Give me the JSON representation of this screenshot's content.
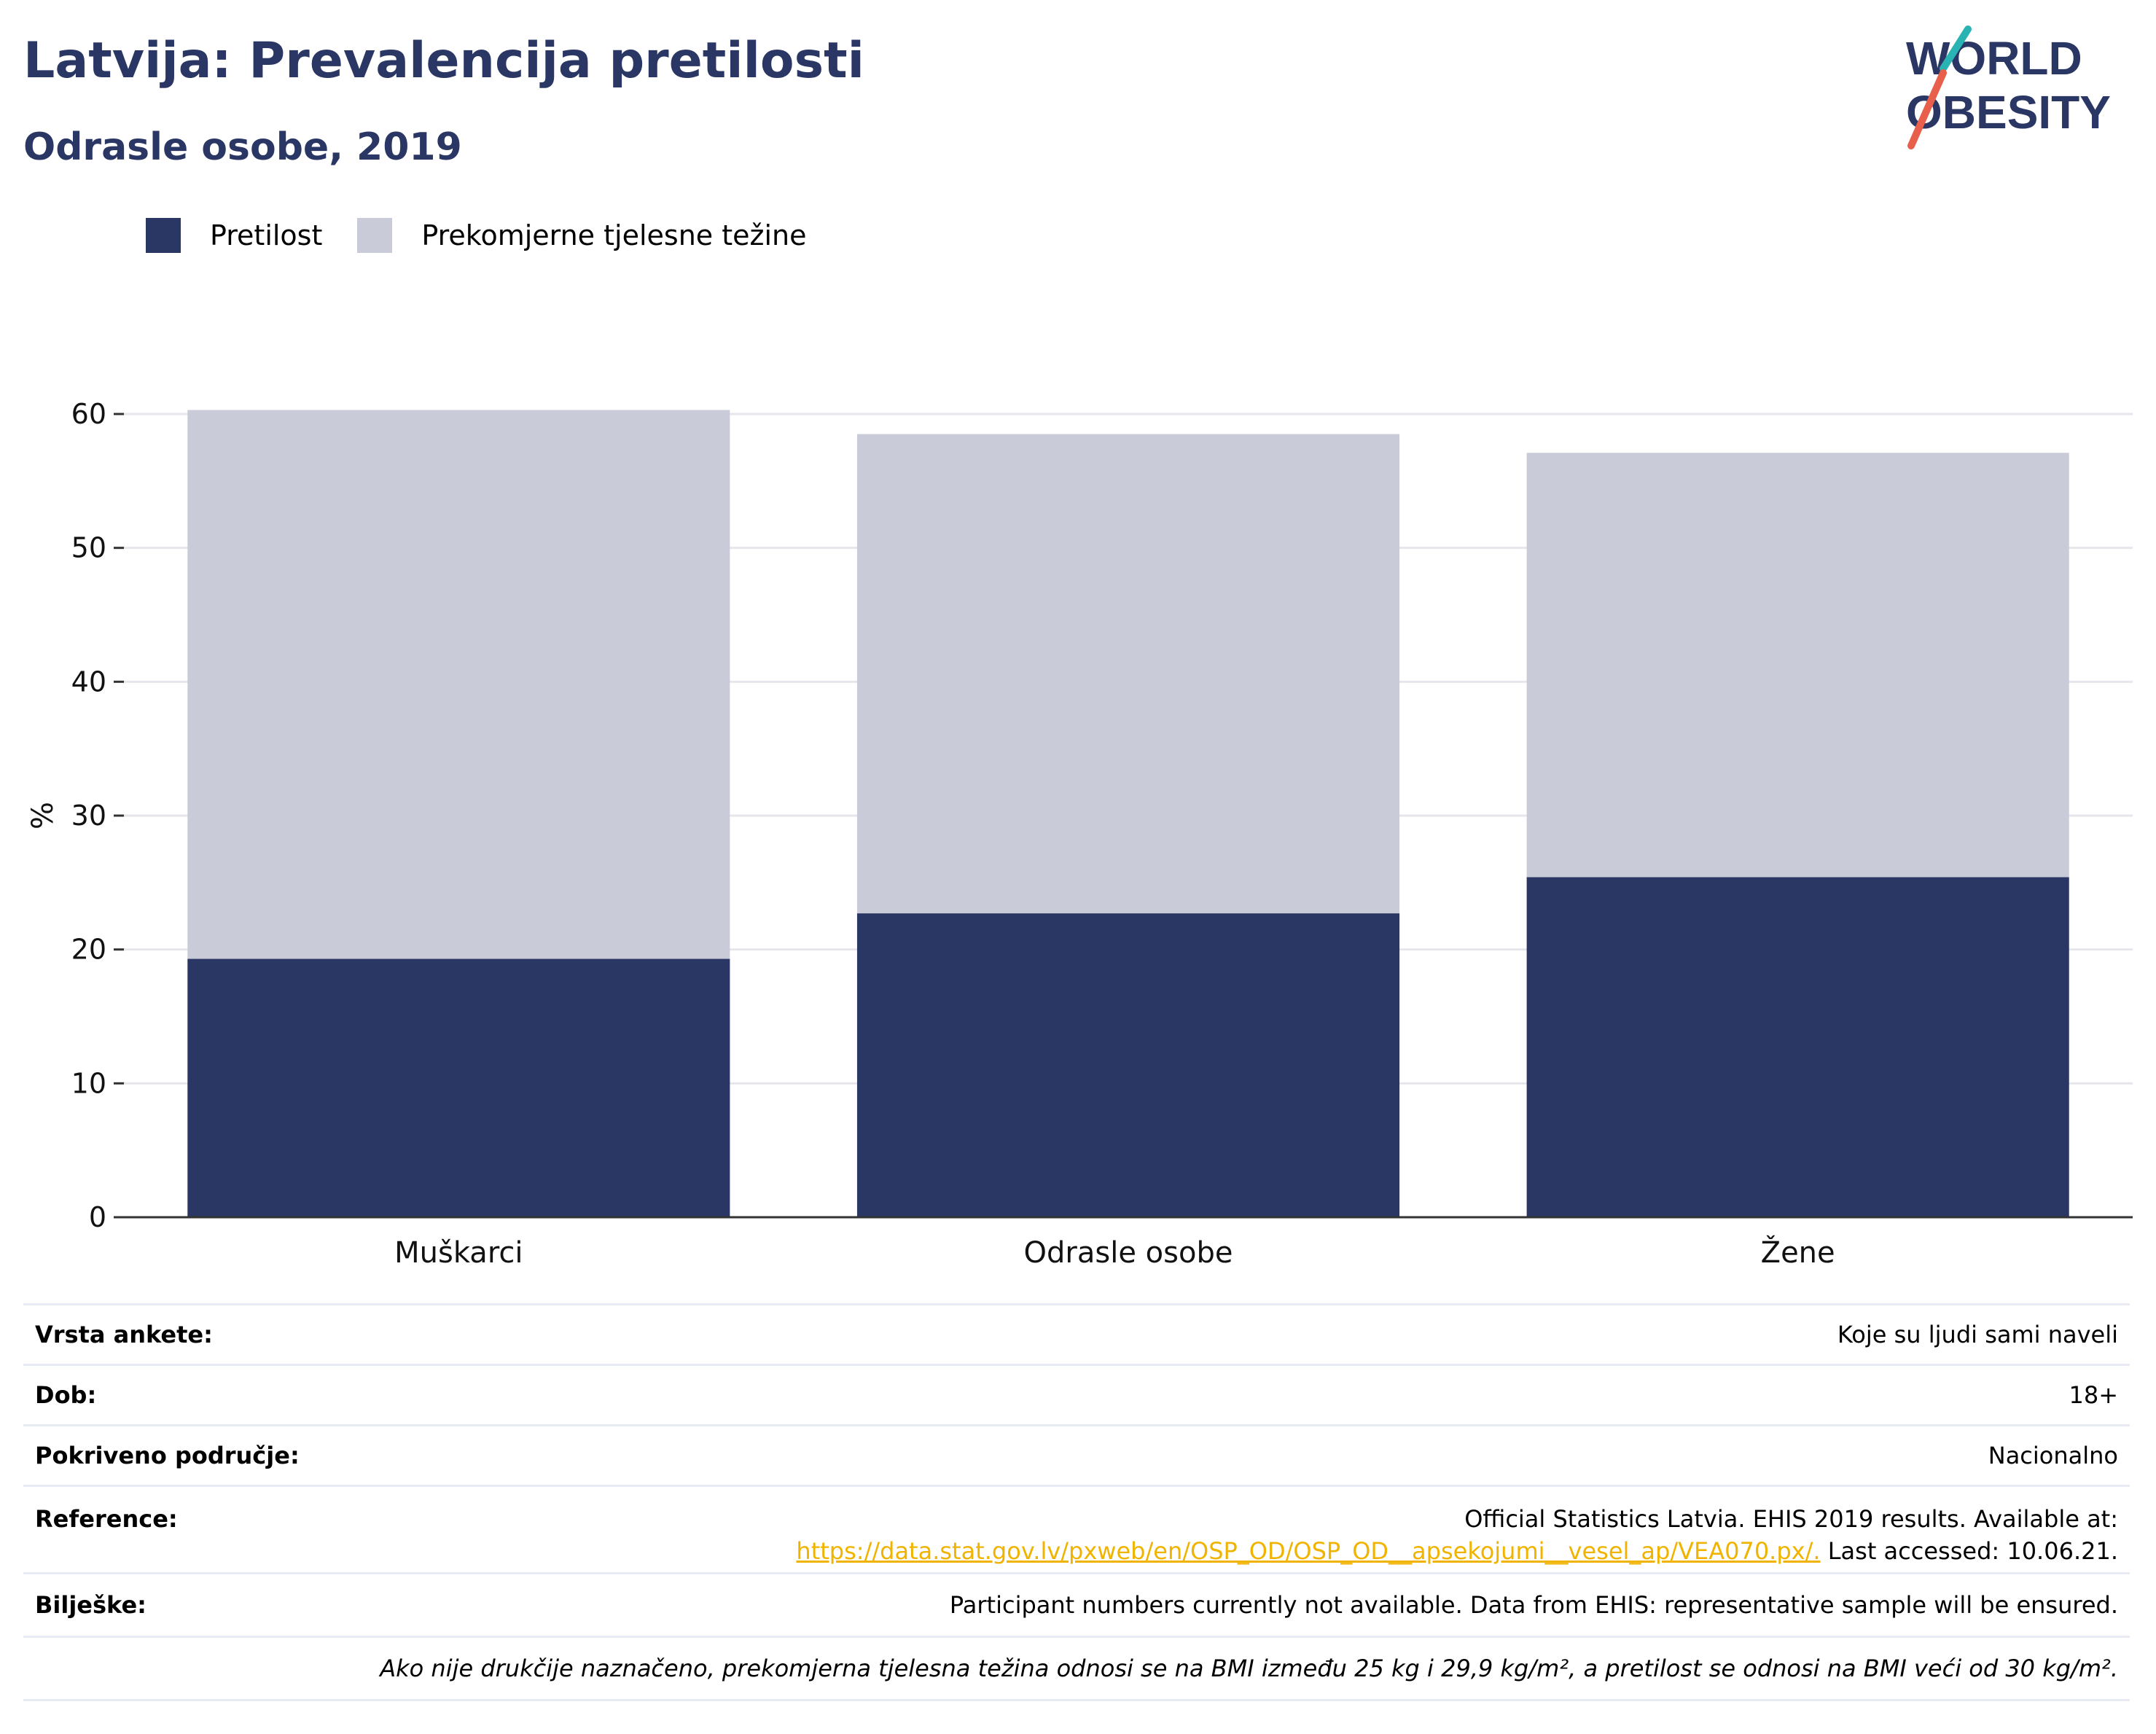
{
  "header": {
    "title": "Latvija: Prevalencija pretilosti",
    "subtitle": "Odrasle osobe, 2019"
  },
  "logo": {
    "line1": "WORLD",
    "line2": "OBESITY"
  },
  "legend": [
    {
      "label": "Pretilost",
      "color": "#2a3664"
    },
    {
      "label": "Prekomjerne tjelesne težine",
      "color": "#c9ccd8"
    }
  ],
  "chart_data": {
    "type": "bar",
    "stacked": true,
    "categories": [
      "Muškarci",
      "Odrasle osobe",
      "Žene"
    ],
    "series": [
      {
        "name": "Pretilost",
        "values": [
          19.3,
          22.7,
          25.4
        ],
        "color": "#2a3664"
      },
      {
        "name": "Prekomjerne tjelesne težine",
        "values": [
          41.0,
          35.8,
          31.7
        ],
        "color": "#c9ccd8"
      }
    ],
    "ylabel": "%",
    "ylim": [
      0,
      60
    ],
    "yticks": [
      0,
      10,
      20,
      30,
      40,
      50,
      60
    ],
    "grid": true,
    "legend_position": "top-left"
  },
  "info": {
    "survey_type_label": "Vrsta ankete:",
    "survey_type_value": "Koje su ljudi sami naveli",
    "age_label": "Dob:",
    "age_value": "18+",
    "coverage_label": "Pokriveno područje:",
    "coverage_value": "Nacionalno",
    "reference_label": "Reference:",
    "reference_line1": "Official Statistics Latvia. EHIS 2019 results. Available at:",
    "reference_link": "https://data.stat.gov.lv/pxweb/en/OSP_OD/OSP_OD__apsekojumi__vesel_ap/VEA070.px/.",
    "reference_tail": " Last accessed: 10.06.21.",
    "notes_label": "Bilješke:",
    "notes_value": "Participant numbers currently not available. Data from EHIS: representative sample will be ensured.",
    "definition": "Ako nije drukčije naznačeno, prekomjerna tjelesna težina odnosi se na BMI između 25 kg i 29,9 kg/m², a pretilost se odnosi na BMI veći od 30 kg/m²."
  }
}
